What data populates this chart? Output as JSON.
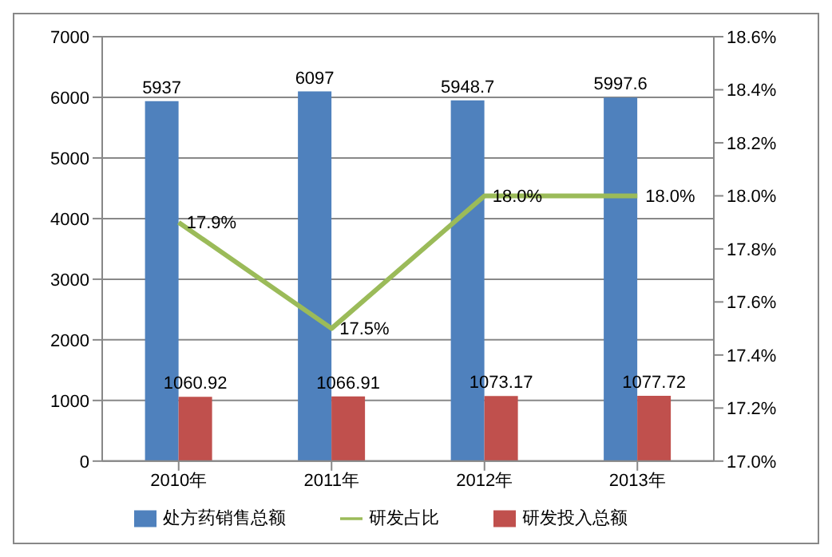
{
  "chart_data": {
    "type": "bar",
    "categories": [
      "2010年",
      "2011年",
      "2012年",
      "2013年"
    ],
    "series": [
      {
        "name": "处方药销售总额",
        "color": "#4f81bd",
        "values": [
          5937,
          6097,
          5948.7,
          5997.6
        ],
        "value_labels": [
          "5937",
          "6097",
          "5948.7",
          "5997.6"
        ]
      },
      {
        "name": "研发投入总额",
        "color": "#c0504d",
        "values": [
          1060.92,
          1066.91,
          1073.17,
          1077.72
        ],
        "value_labels": [
          "1060.92",
          "1066.91",
          "1073.17",
          "1077.72"
        ]
      },
      {
        "name": "研发占比",
        "type": "line",
        "axis": "y2",
        "color": "#9bbb59",
        "values": [
          17.9,
          17.5,
          18.0,
          18.0
        ],
        "value_labels": [
          "17.9%",
          "17.5%",
          "18.0%",
          "18.0%"
        ],
        "marker": "none"
      }
    ],
    "ylim": [
      0,
      7000
    ],
    "yticks": [
      0,
      1000,
      2000,
      3000,
      4000,
      5000,
      6000,
      7000
    ],
    "y2lim": [
      17.0,
      18.6
    ],
    "y2ticks": [
      {
        "value": 17.0,
        "label": "17.0%"
      },
      {
        "value": 17.2,
        "label": "17.2%"
      },
      {
        "value": 17.4,
        "label": "17.4%"
      },
      {
        "value": 17.6,
        "label": "17.6%"
      },
      {
        "value": 17.8,
        "label": "17.8%"
      },
      {
        "value": 18.0,
        "label": "18.0%"
      },
      {
        "value": 18.2,
        "label": "18.2%"
      },
      {
        "value": 18.4,
        "label": "18.4%"
      },
      {
        "value": 18.6,
        "label": "18.6%"
      }
    ],
    "grid": "y",
    "legend": "bottom"
  }
}
